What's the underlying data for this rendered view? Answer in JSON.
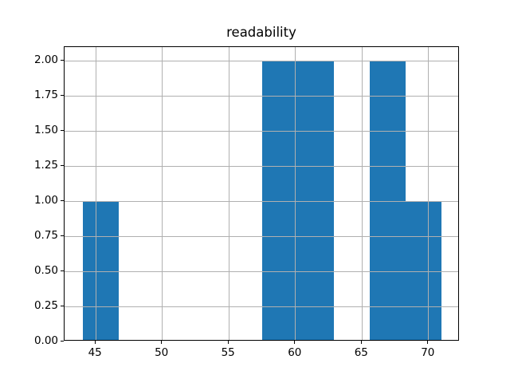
{
  "chart_data": {
    "type": "bar",
    "subtype": "histogram",
    "title": "readability",
    "xlabel": "",
    "ylabel": "",
    "bin_edges": [
      44.0,
      46.7,
      49.4,
      52.1,
      54.8,
      57.5,
      60.2,
      62.9,
      65.6,
      68.3,
      71.0
    ],
    "counts": [
      1,
      0,
      0,
      0,
      0,
      2,
      2,
      0,
      2,
      1
    ],
    "xlim": [
      42.65,
      72.35
    ],
    "ylim": [
      0,
      2.1
    ],
    "x_tick_values": [
      45,
      50,
      55,
      60,
      65,
      70
    ],
    "x_tick_labels": [
      "45",
      "50",
      "55",
      "60",
      "65",
      "70"
    ],
    "y_tick_values": [
      0,
      0.25,
      0.5,
      0.75,
      1.0,
      1.25,
      1.5,
      1.75,
      2.0
    ],
    "y_tick_labels": [
      "0.00",
      "0.25",
      "0.50",
      "0.75",
      "1.00",
      "1.25",
      "1.50",
      "1.75",
      "2.00"
    ],
    "grid": true,
    "grid_above_bars": true,
    "legend": false,
    "colors": {
      "bar": "#1f77b4",
      "grid": "#b0b0b0",
      "spine": "#000000",
      "text": "#000000",
      "background": "#ffffff"
    }
  }
}
